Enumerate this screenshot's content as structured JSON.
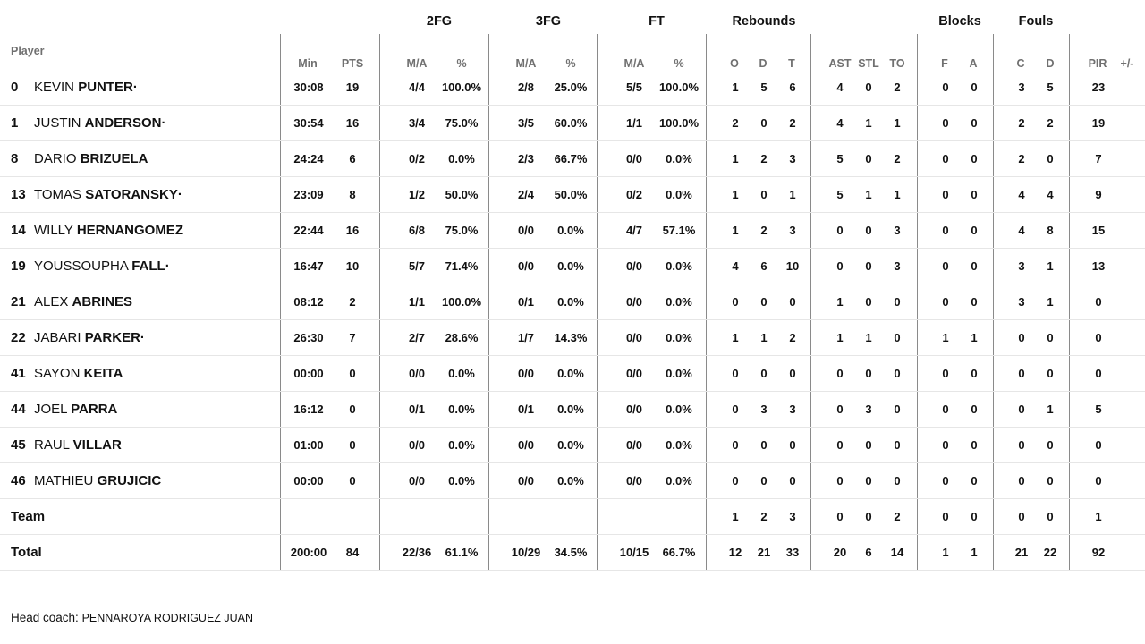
{
  "header": {
    "groups": {
      "fg2": "2FG",
      "fg3": "3FG",
      "ft": "FT",
      "rebounds": "Rebounds",
      "blocks": "Blocks",
      "fouls": "Fouls"
    },
    "player": "Player",
    "min": "Min",
    "pts": "PTS",
    "fg2_ma": "M/A",
    "fg2_pct": "%",
    "fg3_ma": "M/A",
    "fg3_pct": "%",
    "ft_ma": "M/A",
    "ft_pct": "%",
    "reb_o": "O",
    "reb_d": "D",
    "reb_t": "T",
    "ast": "AST",
    "stl": "STL",
    "to": "TO",
    "blk_f": "F",
    "blk_a": "A",
    "foul_c": "C",
    "foul_d": "D",
    "pir": "PIR",
    "pm": "+/-"
  },
  "rows": [
    {
      "num": "0",
      "first": "KEVIN",
      "last": "PUNTER·",
      "min": "30:08",
      "pts": "19",
      "fg2": "4/4",
      "fg2p": "100.0%",
      "fg3": "2/8",
      "fg3p": "25.0%",
      "ft": "5/5",
      "ftp": "100.0%",
      "o": "1",
      "d": "5",
      "t": "6",
      "ast": "4",
      "stl": "0",
      "to": "2",
      "bf": "0",
      "ba": "0",
      "fc": "3",
      "fd": "5",
      "pir": "23",
      "pm": ""
    },
    {
      "num": "1",
      "first": "JUSTIN",
      "last": "ANDERSON·",
      "min": "30:54",
      "pts": "16",
      "fg2": "3/4",
      "fg2p": "75.0%",
      "fg3": "3/5",
      "fg3p": "60.0%",
      "ft": "1/1",
      "ftp": "100.0%",
      "o": "2",
      "d": "0",
      "t": "2",
      "ast": "4",
      "stl": "1",
      "to": "1",
      "bf": "0",
      "ba": "0",
      "fc": "2",
      "fd": "2",
      "pir": "19",
      "pm": ""
    },
    {
      "num": "8",
      "first": "DARIO",
      "last": "BRIZUELA",
      "min": "24:24",
      "pts": "6",
      "fg2": "0/2",
      "fg2p": "0.0%",
      "fg3": "2/3",
      "fg3p": "66.7%",
      "ft": "0/0",
      "ftp": "0.0%",
      "o": "1",
      "d": "2",
      "t": "3",
      "ast": "5",
      "stl": "0",
      "to": "2",
      "bf": "0",
      "ba": "0",
      "fc": "2",
      "fd": "0",
      "pir": "7",
      "pm": ""
    },
    {
      "num": "13",
      "first": "TOMAS",
      "last": "SATORANSKY·",
      "min": "23:09",
      "pts": "8",
      "fg2": "1/2",
      "fg2p": "50.0%",
      "fg3": "2/4",
      "fg3p": "50.0%",
      "ft": "0/2",
      "ftp": "0.0%",
      "o": "1",
      "d": "0",
      "t": "1",
      "ast": "5",
      "stl": "1",
      "to": "1",
      "bf": "0",
      "ba": "0",
      "fc": "4",
      "fd": "4",
      "pir": "9",
      "pm": ""
    },
    {
      "num": "14",
      "first": "WILLY",
      "last": "HERNANGOMEZ",
      "min": "22:44",
      "pts": "16",
      "fg2": "6/8",
      "fg2p": "75.0%",
      "fg3": "0/0",
      "fg3p": "0.0%",
      "ft": "4/7",
      "ftp": "57.1%",
      "o": "1",
      "d": "2",
      "t": "3",
      "ast": "0",
      "stl": "0",
      "to": "3",
      "bf": "0",
      "ba": "0",
      "fc": "4",
      "fd": "8",
      "pir": "15",
      "pm": ""
    },
    {
      "num": "19",
      "first": "YOUSSOUPHA",
      "last": "FALL·",
      "min": "16:47",
      "pts": "10",
      "fg2": "5/7",
      "fg2p": "71.4%",
      "fg3": "0/0",
      "fg3p": "0.0%",
      "ft": "0/0",
      "ftp": "0.0%",
      "o": "4",
      "d": "6",
      "t": "10",
      "ast": "0",
      "stl": "0",
      "to": "3",
      "bf": "0",
      "ba": "0",
      "fc": "3",
      "fd": "1",
      "pir": "13",
      "pm": ""
    },
    {
      "num": "21",
      "first": "ALEX",
      "last": "ABRINES",
      "min": "08:12",
      "pts": "2",
      "fg2": "1/1",
      "fg2p": "100.0%",
      "fg3": "0/1",
      "fg3p": "0.0%",
      "ft": "0/0",
      "ftp": "0.0%",
      "o": "0",
      "d": "0",
      "t": "0",
      "ast": "1",
      "stl": "0",
      "to": "0",
      "bf": "0",
      "ba": "0",
      "fc": "3",
      "fd": "1",
      "pir": "0",
      "pm": ""
    },
    {
      "num": "22",
      "first": "JABARI",
      "last": "PARKER·",
      "min": "26:30",
      "pts": "7",
      "fg2": "2/7",
      "fg2p": "28.6%",
      "fg3": "1/7",
      "fg3p": "14.3%",
      "ft": "0/0",
      "ftp": "0.0%",
      "o": "1",
      "d": "1",
      "t": "2",
      "ast": "1",
      "stl": "1",
      "to": "0",
      "bf": "1",
      "ba": "1",
      "fc": "0",
      "fd": "0",
      "pir": "0",
      "pm": ""
    },
    {
      "num": "41",
      "first": "SAYON",
      "last": "KEITA",
      "min": "00:00",
      "pts": "0",
      "fg2": "0/0",
      "fg2p": "0.0%",
      "fg3": "0/0",
      "fg3p": "0.0%",
      "ft": "0/0",
      "ftp": "0.0%",
      "o": "0",
      "d": "0",
      "t": "0",
      "ast": "0",
      "stl": "0",
      "to": "0",
      "bf": "0",
      "ba": "0",
      "fc": "0",
      "fd": "0",
      "pir": "0",
      "pm": ""
    },
    {
      "num": "44",
      "first": "JOEL",
      "last": "PARRA",
      "min": "16:12",
      "pts": "0",
      "fg2": "0/1",
      "fg2p": "0.0%",
      "fg3": "0/1",
      "fg3p": "0.0%",
      "ft": "0/0",
      "ftp": "0.0%",
      "o": "0",
      "d": "3",
      "t": "3",
      "ast": "0",
      "stl": "3",
      "to": "0",
      "bf": "0",
      "ba": "0",
      "fc": "0",
      "fd": "1",
      "pir": "5",
      "pm": ""
    },
    {
      "num": "45",
      "first": "RAUL",
      "last": "VILLAR",
      "min": "01:00",
      "pts": "0",
      "fg2": "0/0",
      "fg2p": "0.0%",
      "fg3": "0/0",
      "fg3p": "0.0%",
      "ft": "0/0",
      "ftp": "0.0%",
      "o": "0",
      "d": "0",
      "t": "0",
      "ast": "0",
      "stl": "0",
      "to": "0",
      "bf": "0",
      "ba": "0",
      "fc": "0",
      "fd": "0",
      "pir": "0",
      "pm": ""
    },
    {
      "num": "46",
      "first": "MATHIEU",
      "last": "GRUJICIC",
      "min": "00:00",
      "pts": "0",
      "fg2": "0/0",
      "fg2p": "0.0%",
      "fg3": "0/0",
      "fg3p": "0.0%",
      "ft": "0/0",
      "ftp": "0.0%",
      "o": "0",
      "d": "0",
      "t": "0",
      "ast": "0",
      "stl": "0",
      "to": "0",
      "bf": "0",
      "ba": "0",
      "fc": "0",
      "fd": "0",
      "pir": "0",
      "pm": ""
    }
  ],
  "team": {
    "label": "Team",
    "o": "1",
    "d": "2",
    "t": "3",
    "ast": "0",
    "stl": "0",
    "to": "2",
    "bf": "0",
    "ba": "0",
    "fc": "0",
    "fd": "0",
    "pir": "1"
  },
  "total": {
    "label": "Total",
    "min": "200:00",
    "pts": "84",
    "fg2": "22/36",
    "fg2p": "61.1%",
    "fg3": "10/29",
    "fg3p": "34.5%",
    "ft": "10/15",
    "ftp": "66.7%",
    "o": "12",
    "d": "21",
    "t": "33",
    "ast": "20",
    "stl": "6",
    "to": "14",
    "bf": "1",
    "ba": "1",
    "fc": "21",
    "fd": "22",
    "pir": "92",
    "pm": ""
  },
  "coach": {
    "label": "Head coach:",
    "name": "PENNAROYA RODRIGUEZ JUAN"
  }
}
